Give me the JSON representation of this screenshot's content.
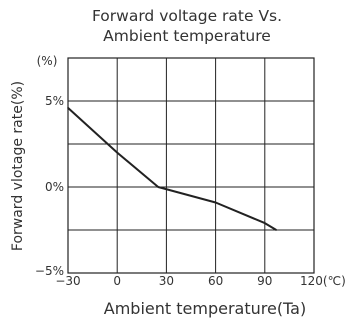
{
  "chart_data": {
    "type": "line",
    "title": [
      "Forward voltage rate Vs.",
      "Ambient temperature"
    ],
    "xlabel": "Ambient temperature(Ta)",
    "ylabel": "Forward vlotage rate(%)",
    "y_unit_label": "(%)",
    "x_unit_label": "120(℃)",
    "xlim": [
      -30,
      120
    ],
    "ylim": [
      -5,
      7.5
    ],
    "x_ticks": [
      {
        "value": -30,
        "label": "−30"
      },
      {
        "value": 0,
        "label": "0"
      },
      {
        "value": 30,
        "label": "30"
      },
      {
        "value": 60,
        "label": "60"
      },
      {
        "value": 90,
        "label": "90"
      }
    ],
    "y_ticks": [
      {
        "value": -5,
        "label": "−5%"
      },
      {
        "value": 0,
        "label": "0%"
      },
      {
        "value": 5,
        "label": "5%"
      }
    ],
    "grid": true,
    "series": [
      {
        "color": "#222222",
        "x": [
          -30,
          0,
          25,
          60,
          90,
          97
        ],
        "y": [
          4.6,
          2.0,
          0.0,
          -0.9,
          -2.1,
          -2.5
        ]
      }
    ]
  }
}
